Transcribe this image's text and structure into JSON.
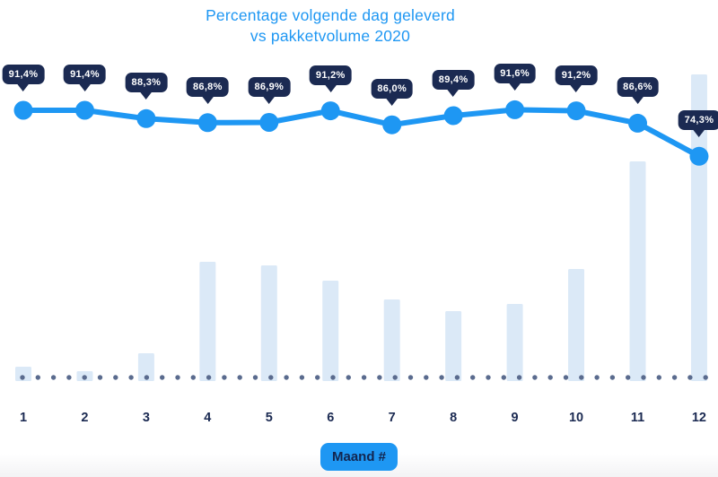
{
  "title": {
    "line1": "Percentage volgende dag geleverd",
    "line2": "vs pakketvolume 2020"
  },
  "x_axis": {
    "categories": [
      "1",
      "2",
      "3",
      "4",
      "5",
      "6",
      "7",
      "8",
      "9",
      "10",
      "11",
      "12"
    ],
    "axis_badge_label": "Maand #"
  },
  "chart_data": {
    "type": "line+bar",
    "title": "Percentage volgende dag geleverd vs pakketvolume 2020",
    "xlabel": "Maand #",
    "ylabel": "",
    "categories": [
      1,
      2,
      3,
      4,
      5,
      6,
      7,
      8,
      9,
      10,
      11,
      12
    ],
    "grid": false,
    "legend_position": "none",
    "baseline_style": "dotted",
    "series": [
      {
        "name": "Percentage volgende dag geleverd",
        "type": "line",
        "unit": "percent",
        "values": [
          91.4,
          91.4,
          88.3,
          86.8,
          86.9,
          91.2,
          86.0,
          89.4,
          91.6,
          91.2,
          86.6,
          74.3
        ],
        "point_labels": [
          "91,4%",
          "91,4%",
          "88,3%",
          "86,8%",
          "86,9%",
          "91,2%",
          "86,0%",
          "89,4%",
          "91,6%",
          "91,2%",
          "86,6%",
          "74,3%"
        ]
      },
      {
        "name": "Pakketvolume 2020",
        "type": "bar",
        "unit": "relative height px (value axis not shown)",
        "values": [
          16,
          11,
          31,
          133,
          129,
          112,
          91,
          78,
          86,
          125,
          245,
          342
        ]
      }
    ]
  },
  "colors": {
    "accent_blue": "#1e97f3",
    "badge_navy": "#1b2a52",
    "axis_label_navy": "#1b2a52",
    "bar_light_blue": "#dbe9f7",
    "dot_slate": "#5a6b8e",
    "badge_text_white": "#ffffff",
    "axis_badge_text_navy": "#13254f",
    "title_blue": "#1e97f3"
  }
}
